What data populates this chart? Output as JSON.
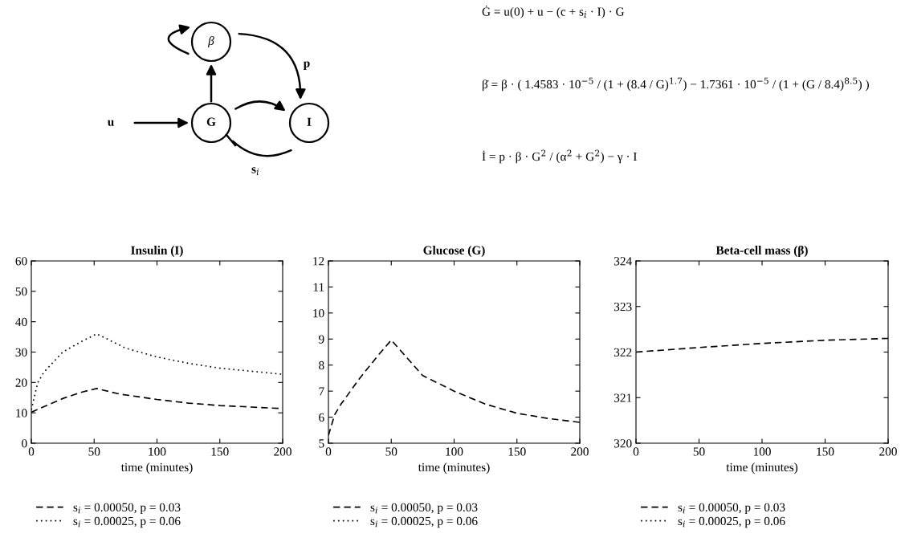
{
  "chart_data": [
    {
      "type": "other",
      "annotations": [
        "u",
        "G",
        "β",
        "I",
        "p",
        "s$_{i}$",
        "Ġ = u(0) + u − (c + s$_{i}$ · I) · G",
        "β̇ = β · ( 1.4583 · 10$^{−5}$ / (1 + (8.4 / G)$^{1.7}$) − 1.7361 · 10$^{−5}$ / (1 + (G / 8.4)$^{8.5}$) )",
        "İ = p · β · G$^{2}$ / (α$^{2}$ + G$^{2}$) − γ · I"
      ]
    },
    {
      "type": "line",
      "title": "Insulin (I)",
      "xlabel": "time (minutes)",
      "xlim": [
        0,
        200
      ],
      "xticks": [
        0,
        50,
        100,
        150,
        200
      ],
      "ylim": [
        0,
        60
      ],
      "yticks": [
        0,
        10,
        20,
        30,
        40,
        50,
        60
      ],
      "grid": false,
      "legend": "bottom",
      "series": [
        {
          "name": "s$_{i}$ = 0.00050, p = 0.03",
          "color": "#000000",
          "line_style": "dashed",
          "x": [
            0,
            10,
            25,
            40,
            52,
            70,
            100,
            125,
            150,
            175,
            200
          ],
          "values": [
            10.2,
            12,
            14.7,
            16.8,
            18,
            16.2,
            14.4,
            13.2,
            12.4,
            11.9,
            11.4
          ]
        },
        {
          "name": "s$_{i}$ = 0.00025, p = 0.06",
          "color": "#000000",
          "line_style": "dotted",
          "x": [
            0,
            2,
            5,
            10,
            25,
            40,
            52,
            75,
            100,
            125,
            150,
            175,
            200
          ],
          "values": [
            11,
            14.5,
            19.8,
            23.4,
            30,
            33.5,
            36,
            31.3,
            28.4,
            26.3,
            24.7,
            23.7,
            22.7
          ]
        }
      ]
    },
    {
      "type": "line",
      "title": "Glucose (G)",
      "xlabel": "time (minutes)",
      "xlim": [
        0,
        200
      ],
      "xticks": [
        0,
        50,
        100,
        150,
        200
      ],
      "ylim": [
        5,
        12
      ],
      "yticks": [
        5,
        6,
        7,
        8,
        9,
        10,
        11,
        12
      ],
      "grid": false,
      "legend": "bottom",
      "series": [
        {
          "name": "s$_{i}$ = 0.00050, p = 0.03",
          "color": "#000000",
          "line_style": "dashed",
          "x": [
            0,
            5,
            10,
            25,
            40,
            50,
            75,
            100,
            125,
            150,
            175,
            200
          ],
          "values": [
            5.3,
            6.1,
            6.5,
            7.5,
            8.4,
            8.96,
            7.6,
            7.0,
            6.5,
            6.15,
            5.95,
            5.8
          ]
        },
        {
          "name": "s$_{i}$ = 0.00025, p = 0.06",
          "color": "#000000",
          "line_style": "dotted"
        }
      ]
    },
    {
      "type": "line",
      "title": "Beta-cell mass (β)",
      "xlabel": "time (minutes)",
      "xlim": [
        0,
        200
      ],
      "xticks": [
        0,
        50,
        100,
        150,
        200
      ],
      "ylim": [
        320,
        324
      ],
      "yticks": [
        320,
        321,
        322,
        323,
        324
      ],
      "grid": false,
      "legend": "bottom",
      "series": [
        {
          "name": "s$_{i}$ = 0.00050, p = 0.03",
          "color": "#000000",
          "line_style": "dashed",
          "x": [
            0,
            50,
            100,
            150,
            200
          ],
          "values": [
            322.0,
            322.1,
            322.19,
            322.26,
            322.3
          ]
        },
        {
          "name": "s$_{i}$ = 0.00025, p = 0.06",
          "color": "#000000",
          "line_style": "dotted"
        }
      ]
    }
  ]
}
